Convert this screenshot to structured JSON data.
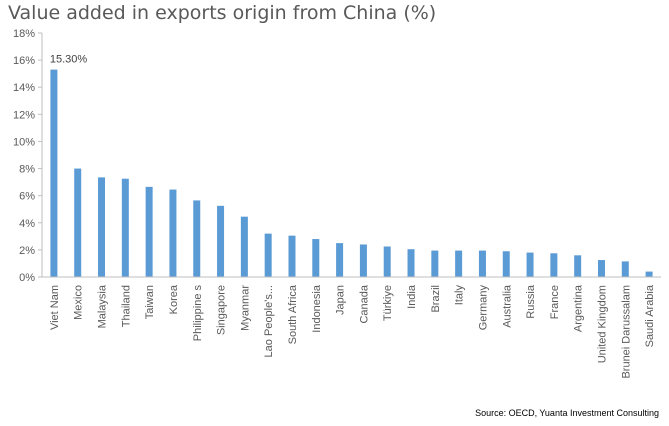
{
  "title": "Value added in exports origin from China (%)",
  "source": "Source: OECD, Yuanta Investment Consulting",
  "chart_data": {
    "type": "bar",
    "title": "Value added in exports origin from China (%)",
    "xlabel": "",
    "ylabel": "",
    "ylim": [
      0,
      18
    ],
    "yticks": [
      0,
      2,
      4,
      6,
      8,
      10,
      12,
      14,
      16,
      18
    ],
    "ytick_labels": [
      "0%",
      "2%",
      "4%",
      "6%",
      "8%",
      "10%",
      "12%",
      "14%",
      "16%",
      "18%"
    ],
    "grid": false,
    "legend": "none",
    "bar_color": "#5B9BD5",
    "categories": [
      "Viet Nam",
      "Mexico",
      "Malaysia",
      "Thailand",
      "Taiwan",
      "Korea",
      "Philippine s",
      "Singapore",
      "Myanmar",
      "Lao People's...",
      "South Africa",
      "Indonesia",
      "Japan",
      "Canada",
      "Türkiye",
      "India",
      "Brazil",
      "Italy",
      "Germany",
      "Australia",
      "Russia",
      "France",
      "Argentina",
      "United Kingdom",
      "Brunei Darussalam",
      "Saudi Arabia"
    ],
    "values": [
      15.3,
      8.0,
      7.35,
      7.25,
      6.65,
      6.45,
      5.65,
      5.25,
      4.45,
      3.2,
      3.05,
      2.8,
      2.5,
      2.4,
      2.25,
      2.05,
      1.95,
      1.95,
      1.95,
      1.9,
      1.8,
      1.75,
      1.6,
      1.25,
      1.15,
      0.4
    ],
    "data_labels": [
      {
        "index": 0,
        "text": "15.30%"
      }
    ]
  }
}
